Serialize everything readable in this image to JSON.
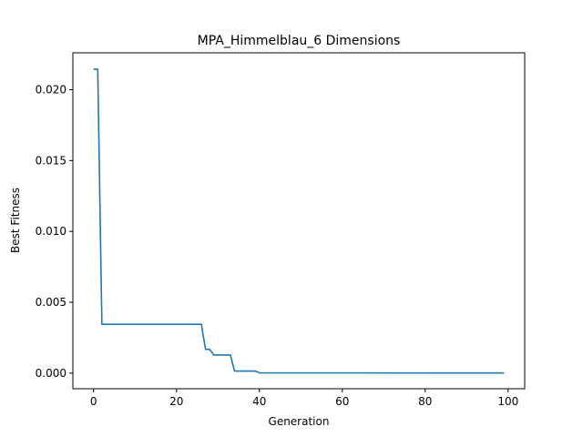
{
  "chart_data": {
    "type": "line",
    "title": "MPA_Himmelblau_6 Dimensions",
    "xlabel": "Generation",
    "ylabel": "Best Fitness",
    "xlim": [
      -5,
      104
    ],
    "ylim": [
      -0.0011,
      0.0226
    ],
    "grid": false,
    "x_ticks": [
      0,
      20,
      40,
      60,
      80,
      100
    ],
    "x_tick_labels": [
      "0",
      "20",
      "40",
      "60",
      "80",
      "100"
    ],
    "y_ticks": [
      0.0,
      0.005,
      0.01,
      0.015,
      0.02
    ],
    "y_tick_labels": [
      "0.000",
      "0.005",
      "0.010",
      "0.015",
      "0.020"
    ],
    "series": [
      {
        "color": "#1f77b4",
        "x": [
          0,
          1,
          2,
          26,
          27,
          28,
          29,
          33,
          34,
          39,
          40,
          99
        ],
        "y": [
          0.02145,
          0.02145,
          0.00345,
          0.00345,
          0.00168,
          0.00168,
          0.00128,
          0.00128,
          0.00015,
          0.00015,
          2e-05,
          1e-05
        ]
      }
    ]
  }
}
